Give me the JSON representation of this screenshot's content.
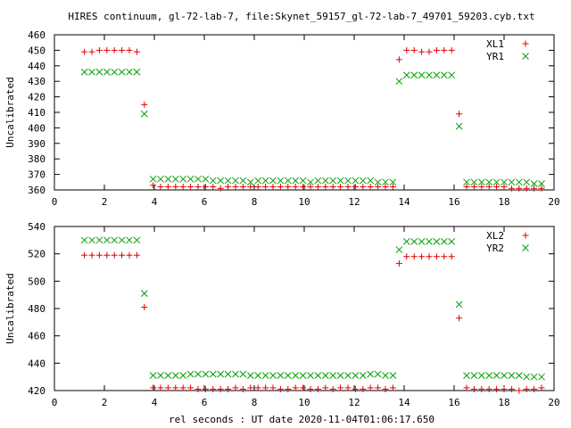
{
  "title": "HIRES continuum, gl-72-lab-7, file:Skynet_59157_gl-72-lab-7_49701_59203.cyb.txt",
  "xlabel": "rel seconds : UT date 2020-11-04T01:06:17.650",
  "chart_data": [
    {
      "type": "scatter",
      "ylabel": "Uncalibrated",
      "xlim": [
        0,
        20
      ],
      "ylim": [
        360,
        460
      ],
      "xticks": [
        0,
        2,
        4,
        6,
        8,
        10,
        12,
        14,
        16,
        18,
        20
      ],
      "yticks": [
        360,
        370,
        380,
        390,
        400,
        410,
        420,
        430,
        440,
        450,
        460
      ],
      "grid": false,
      "legend_position": "top-right",
      "series": [
        {
          "name": "XL1",
          "marker": "plus",
          "color": "#e00000",
          "x": [
            1.2,
            1.5,
            1.8,
            2.1,
            2.4,
            2.7,
            3.0,
            3.3,
            3.6,
            3.95,
            4.25,
            4.55,
            4.85,
            5.15,
            5.45,
            5.75,
            6.05,
            6.35,
            6.65,
            6.95,
            7.25,
            7.55,
            7.85,
            8.15,
            8.45,
            8.75,
            9.05,
            9.35,
            9.65,
            9.95,
            10.25,
            10.55,
            10.85,
            11.15,
            11.45,
            11.75,
            12.05,
            12.35,
            12.65,
            12.95,
            13.25,
            13.55,
            13.8,
            14.1,
            14.4,
            14.7,
            15.0,
            15.3,
            15.6,
            15.9,
            16.2,
            16.5,
            16.8,
            17.1,
            17.4,
            17.7,
            18.0,
            18.3,
            18.6,
            18.9,
            19.2,
            19.5
          ],
          "y": [
            449,
            449,
            450,
            450,
            450,
            450,
            450,
            449,
            415,
            363,
            362,
            362,
            362,
            362,
            362,
            362,
            362,
            362,
            361,
            362,
            362,
            362,
            362,
            362,
            362,
            362,
            362,
            362,
            362,
            362,
            362,
            362,
            362,
            362,
            362,
            362,
            362,
            362,
            362,
            362,
            362,
            362,
            444,
            450,
            450,
            449,
            449,
            450,
            450,
            450,
            409,
            362,
            362,
            362,
            362,
            362,
            362,
            361,
            361,
            361,
            361,
            361
          ]
        },
        {
          "name": "YR1",
          "marker": "x",
          "color": "#00a000",
          "x": [
            1.2,
            1.5,
            1.8,
            2.1,
            2.4,
            2.7,
            3.0,
            3.3,
            3.6,
            3.95,
            4.25,
            4.55,
            4.85,
            5.15,
            5.45,
            5.75,
            6.05,
            6.35,
            6.65,
            6.95,
            7.25,
            7.55,
            7.85,
            8.15,
            8.45,
            8.75,
            9.05,
            9.35,
            9.65,
            9.95,
            10.25,
            10.55,
            10.85,
            11.15,
            11.45,
            11.75,
            12.05,
            12.35,
            12.65,
            12.95,
            13.25,
            13.55,
            13.8,
            14.1,
            14.4,
            14.7,
            15.0,
            15.3,
            15.6,
            15.9,
            16.2,
            16.5,
            16.8,
            17.1,
            17.4,
            17.7,
            18.0,
            18.3,
            18.6,
            18.9,
            19.2,
            19.5
          ],
          "y": [
            436,
            436,
            436,
            436,
            436,
            436,
            436,
            436,
            409,
            367,
            367,
            367,
            367,
            367,
            367,
            367,
            367,
            366,
            366,
            366,
            366,
            366,
            365,
            366,
            366,
            366,
            366,
            366,
            366,
            366,
            365,
            366,
            366,
            366,
            366,
            366,
            366,
            366,
            366,
            365,
            365,
            365,
            430,
            434,
            434,
            434,
            434,
            434,
            434,
            434,
            401,
            365,
            365,
            365,
            365,
            365,
            365,
            365,
            365,
            365,
            364,
            364
          ]
        }
      ]
    },
    {
      "type": "scatter",
      "ylabel": "Uncalibrated",
      "xlim": [
        0,
        20
      ],
      "ylim": [
        420,
        540
      ],
      "xticks": [
        0,
        2,
        4,
        6,
        8,
        10,
        12,
        14,
        16,
        18,
        20
      ],
      "yticks": [
        420,
        440,
        460,
        480,
        500,
        520,
        540
      ],
      "grid": false,
      "legend_position": "top-right",
      "series": [
        {
          "name": "XL2",
          "marker": "plus",
          "color": "#e00000",
          "x": [
            1.2,
            1.5,
            1.8,
            2.1,
            2.4,
            2.7,
            3.0,
            3.3,
            3.6,
            3.95,
            4.25,
            4.55,
            4.85,
            5.15,
            5.45,
            5.75,
            6.05,
            6.35,
            6.65,
            6.95,
            7.25,
            7.55,
            7.85,
            8.15,
            8.45,
            8.75,
            9.05,
            9.35,
            9.65,
            9.95,
            10.25,
            10.55,
            10.85,
            11.15,
            11.45,
            11.75,
            12.05,
            12.35,
            12.65,
            12.95,
            13.25,
            13.55,
            13.8,
            14.1,
            14.4,
            14.7,
            15.0,
            15.3,
            15.6,
            15.9,
            16.2,
            16.5,
            16.8,
            17.1,
            17.4,
            17.7,
            18.0,
            18.3,
            18.6,
            18.9,
            19.2,
            19.5
          ],
          "y": [
            519,
            519,
            519,
            519,
            519,
            519,
            519,
            519,
            481,
            422,
            422,
            422,
            422,
            422,
            422,
            421,
            421,
            421,
            421,
            421,
            422,
            421,
            422,
            422,
            422,
            422,
            421,
            421,
            422,
            422,
            421,
            421,
            422,
            421,
            422,
            422,
            421,
            421,
            422,
            422,
            421,
            422,
            513,
            518,
            518,
            518,
            518,
            518,
            518,
            518,
            473,
            422,
            421,
            421,
            421,
            421,
            421,
            421,
            420,
            421,
            421,
            422
          ]
        },
        {
          "name": "YR2",
          "marker": "x",
          "color": "#00a000",
          "x": [
            1.2,
            1.5,
            1.8,
            2.1,
            2.4,
            2.7,
            3.0,
            3.3,
            3.6,
            3.95,
            4.25,
            4.55,
            4.85,
            5.15,
            5.45,
            5.75,
            6.05,
            6.35,
            6.65,
            6.95,
            7.25,
            7.55,
            7.85,
            8.15,
            8.45,
            8.75,
            9.05,
            9.35,
            9.65,
            9.95,
            10.25,
            10.55,
            10.85,
            11.15,
            11.45,
            11.75,
            12.05,
            12.35,
            12.65,
            12.95,
            13.25,
            13.55,
            13.8,
            14.1,
            14.4,
            14.7,
            15.0,
            15.3,
            15.6,
            15.9,
            16.2,
            16.5,
            16.8,
            17.1,
            17.4,
            17.7,
            18.0,
            18.3,
            18.6,
            18.9,
            19.2,
            19.5
          ],
          "y": [
            530,
            530,
            530,
            530,
            530,
            530,
            530,
            530,
            491,
            431,
            431,
            431,
            431,
            431,
            432,
            432,
            432,
            432,
            432,
            432,
            432,
            432,
            431,
            431,
            431,
            431,
            431,
            431,
            431,
            431,
            431,
            431,
            431,
            431,
            431,
            431,
            431,
            431,
            432,
            432,
            431,
            431,
            523,
            529,
            529,
            529,
            529,
            529,
            529,
            529,
            483,
            431,
            431,
            431,
            431,
            431,
            431,
            431,
            431,
            430,
            430,
            430
          ]
        }
      ]
    }
  ]
}
